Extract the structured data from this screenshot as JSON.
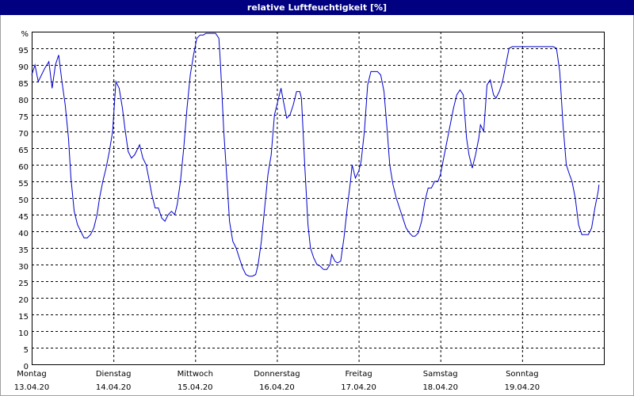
{
  "chart_data": {
    "type": "line",
    "title": "relative Luftfeuchtigkeit [%]",
    "xlim": [
      0,
      7
    ],
    "xticks": [
      {
        "value": 0,
        "label": "13.04.20"
      },
      {
        "value": 1,
        "label": "14.04.20"
      },
      {
        "value": 2,
        "label": "15.04.20"
      },
      {
        "value": 3,
        "label": "16.04.20"
      },
      {
        "value": 4,
        "label": "17.04.20"
      },
      {
        "value": 5,
        "label": "18.04.20"
      },
      {
        "value": 6,
        "label": "19.04.20"
      }
    ],
    "xtick_weekdays": [
      "Montag",
      "Dienstag",
      "Mittwoch",
      "Donnerstag",
      "Freitag",
      "Samstag",
      "Sonntag"
    ],
    "ylim": [
      0,
      100
    ],
    "yticks": [
      0,
      5,
      10,
      15,
      20,
      25,
      30,
      35,
      40,
      45,
      50,
      55,
      60,
      65,
      70,
      75,
      80,
      85,
      90,
      95,
      {
        "value": 100,
        "label": "%"
      }
    ],
    "grid": true,
    "x": [
      0,
      0.04,
      0.08,
      0.12,
      0.16,
      0.21,
      0.25,
      0.29,
      0.33,
      0.37,
      0.41,
      0.45,
      0.48,
      0.52,
      0.56,
      0.6,
      0.64,
      0.68,
      0.72,
      0.76,
      0.8,
      0.83,
      0.87,
      0.91,
      0.95,
      0.99,
      1.03,
      1.07,
      1.11,
      1.14,
      1.18,
      1.22,
      1.26,
      1.32,
      1.36,
      1.4,
      1.44,
      1.47,
      1.51,
      1.55,
      1.59,
      1.63,
      1.67,
      1.71,
      1.75,
      1.78,
      1.82,
      1.86,
      1.9,
      1.94,
      1.98,
      2.02,
      2.06,
      2.1,
      2.13,
      2.19,
      2.25,
      2.29,
      2.31,
      2.35,
      2.39,
      2.42,
      2.46,
      2.5,
      2.54,
      2.58,
      2.62,
      2.66,
      2.7,
      2.74,
      2.77,
      2.81,
      2.85,
      2.89,
      2.93,
      2.97,
      3.01,
      3.05,
      3.08,
      3.12,
      3.16,
      3.2,
      3.24,
      3.28,
      3.3,
      3.34,
      3.38,
      3.41,
      3.45,
      3.49,
      3.53,
      3.57,
      3.61,
      3.65,
      3.67,
      3.71,
      3.74,
      3.78,
      3.82,
      3.86,
      3.9,
      3.92,
      3.96,
      4.0,
      4.03,
      4.07,
      4.11,
      4.15,
      4.19,
      4.23,
      4.27,
      4.31,
      4.35,
      4.38,
      4.42,
      4.46,
      4.5,
      4.54,
      4.58,
      4.62,
      4.66,
      4.69,
      4.73,
      4.77,
      4.81,
      4.85,
      4.89,
      4.93,
      4.97,
      5.0,
      5.04,
      5.08,
      5.12,
      5.16,
      5.2,
      5.24,
      5.28,
      5.32,
      5.35,
      5.39,
      5.43,
      5.47,
      5.49,
      5.53,
      5.57,
      5.61,
      5.65,
      5.68,
      5.72,
      5.76,
      5.8,
      5.84,
      5.88,
      6.01,
      6.21,
      6.38,
      6.42,
      6.46,
      6.5,
      6.54,
      6.58,
      6.61,
      6.65,
      6.69,
      6.73,
      6.77,
      6.81,
      6.85,
      6.89,
      6.93,
      6.94
    ],
    "series": [
      {
        "color": "#0000cc",
        "values": [
          87,
          90,
          85,
          87,
          89,
          91,
          83,
          90,
          93,
          85,
          78,
          68,
          56,
          46,
          42,
          40,
          38,
          38,
          39,
          41,
          45,
          50,
          55,
          59,
          64,
          70,
          85,
          83,
          77,
          71,
          64,
          62,
          63,
          66,
          62,
          60,
          55,
          51,
          47,
          47,
          44,
          43,
          45,
          46,
          45,
          48,
          55,
          65,
          77,
          87,
          93,
          98,
          99,
          99,
          99.5,
          99.5,
          99.5,
          98,
          90,
          70,
          55,
          43,
          37,
          35,
          32,
          29,
          27,
          26.5,
          26.5,
          27,
          30,
          37,
          47,
          57,
          63,
          75,
          79,
          83,
          79,
          74,
          75,
          78,
          82,
          82,
          80,
          60,
          42,
          35,
          32,
          30,
          29.5,
          28.5,
          28.5,
          30,
          33,
          31,
          30.5,
          31,
          38,
          47,
          55,
          60,
          56,
          58,
          61,
          70,
          84,
          88,
          88,
          88,
          87,
          82,
          70,
          60,
          54,
          50,
          47,
          44,
          41,
          39.5,
          38.5,
          38.5,
          39.5,
          43,
          49,
          53,
          53,
          55,
          55,
          57,
          62,
          67,
          72,
          77,
          81,
          82.5,
          81,
          68,
          63,
          59,
          63,
          68,
          72,
          70,
          84,
          85.5,
          81,
          80,
          82,
          85,
          90,
          95,
          95.5,
          95.5,
          95.5,
          95.5,
          95,
          88,
          72,
          60,
          57,
          55,
          50,
          42,
          39,
          39,
          39,
          41,
          47,
          52,
          54
        ]
      }
    ]
  }
}
